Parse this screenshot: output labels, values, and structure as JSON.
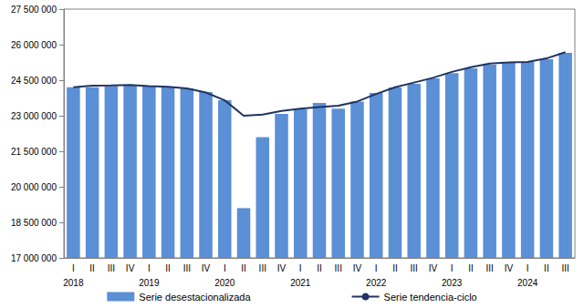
{
  "chart_data": {
    "type": "bar",
    "categories": [
      "I",
      "II",
      "III",
      "IV",
      "I",
      "II",
      "III",
      "IV",
      "I",
      "II",
      "III",
      "IV",
      "I",
      "II",
      "III",
      "IV",
      "I",
      "II",
      "III",
      "IV",
      "I",
      "II",
      "III",
      "IV",
      "I",
      "II",
      "III"
    ],
    "x_groups": [
      "2018",
      null,
      null,
      null,
      "2019",
      null,
      null,
      null,
      "2020",
      null,
      null,
      null,
      "2021",
      null,
      null,
      null,
      "2022",
      null,
      null,
      null,
      "2023",
      null,
      null,
      null,
      "2024",
      null,
      null
    ],
    "series": [
      {
        "name": "Serie desestacionalizada",
        "type": "bar",
        "color": "#5b8fd6",
        "values": [
          24200000,
          24200000,
          24250000,
          24300000,
          24250000,
          24200000,
          24150000,
          24000000,
          23650000,
          19100000,
          22100000,
          23080000,
          23270000,
          23540000,
          23300000,
          23600000,
          23960000,
          24190000,
          24350000,
          24580000,
          24800000,
          25000000,
          25150000,
          25230000,
          25270000,
          25380000,
          25650000
        ]
      },
      {
        "name": "Serie tendencia-ciclo",
        "type": "line",
        "color": "#1f3460",
        "values": [
          24200000,
          24270000,
          24280000,
          24300000,
          24250000,
          24220000,
          24150000,
          23980000,
          23650000,
          23000000,
          23050000,
          23200000,
          23300000,
          23370000,
          23420000,
          23600000,
          23920000,
          24200000,
          24400000,
          24600000,
          24850000,
          25050000,
          25200000,
          25250000,
          25270000,
          25420000,
          25680000
        ]
      }
    ],
    "ylim": [
      17000000,
      27500000
    ],
    "yticks": [
      {
        "value": 17000000,
        "label": "17 000 000"
      },
      {
        "value": 18500000,
        "label": "18 500 000"
      },
      {
        "value": 20000000,
        "label": "20 000 000"
      },
      {
        "value": 21500000,
        "label": "21 500 000"
      },
      {
        "value": 23000000,
        "label": "23 000 000"
      },
      {
        "value": 24500000,
        "label": "24 500 000"
      },
      {
        "value": 26000000,
        "label": "26 000 000"
      },
      {
        "value": 27500000,
        "label": "27 500 000"
      }
    ],
    "grid": false,
    "legend": "bottom"
  }
}
